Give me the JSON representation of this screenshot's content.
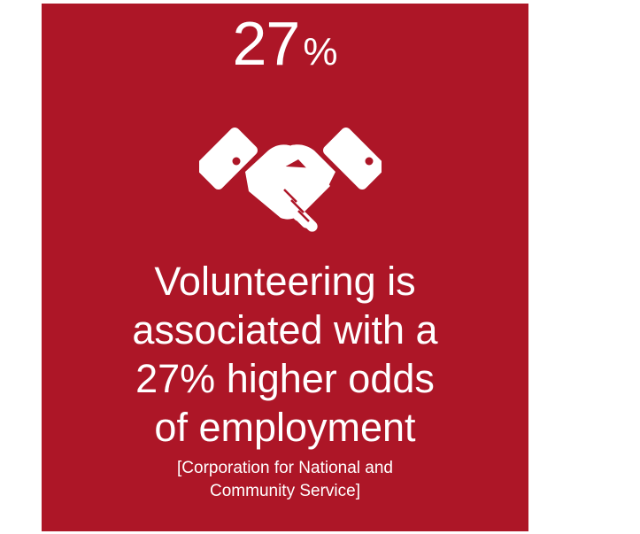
{
  "card": {
    "background_color": "#ad1627",
    "text_color": "#ffffff",
    "stat": {
      "number": "27",
      "unit": "%"
    },
    "icon": "handshake-icon",
    "headline_lines": [
      "Volunteering is",
      "associated with a",
      "27% higher odds",
      "of employment"
    ],
    "source_lines": [
      "[Corporation for National and",
      "Community Service]"
    ]
  }
}
